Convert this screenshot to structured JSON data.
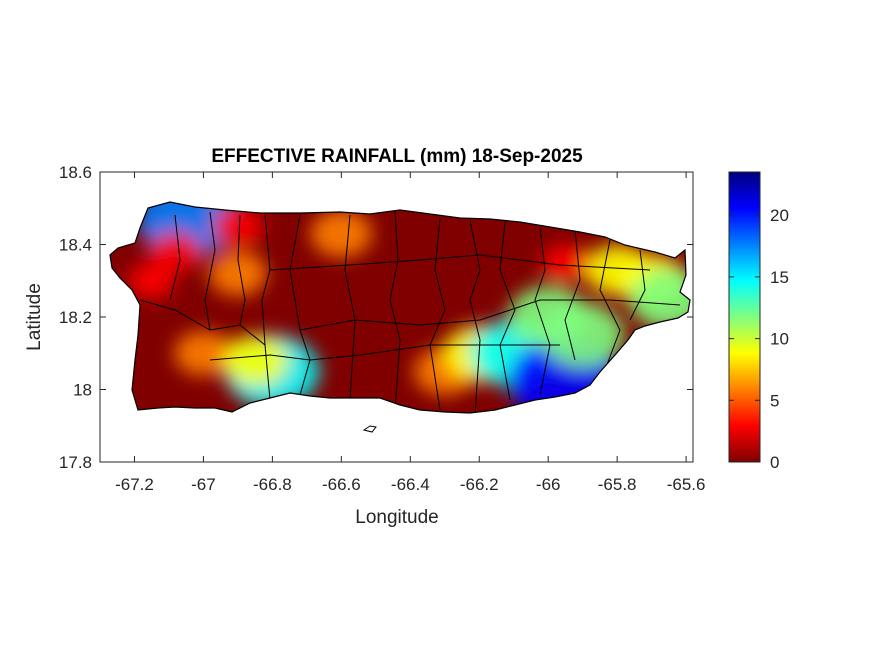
{
  "chart_data": {
    "type": "heatmap",
    "title": "EFFECTIVE RAINFALL (mm) 18-Sep-2025",
    "xlabel": "Longitude",
    "ylabel": "Latitude",
    "xlim": [
      -67.3,
      -65.58
    ],
    "ylim": [
      17.8,
      18.6
    ],
    "x_ticks": [
      -67.2,
      -67,
      -66.8,
      -66.6,
      -66.4,
      -66.2,
      -66,
      -65.8,
      -65.6
    ],
    "x_tick_labels": [
      "-67.2",
      "-67",
      "-66.8",
      "-66.6",
      "-66.4",
      "-66.2",
      "-66",
      "-65.8",
      "-65.6"
    ],
    "y_ticks": [
      17.8,
      18,
      18.2,
      18.4,
      18.6
    ],
    "y_tick_labels": [
      "17.8",
      "18",
      "18.2",
      "18.4",
      "18.6"
    ],
    "colorbar": {
      "min": 0,
      "max": 23.5,
      "ticks": [
        0,
        5,
        10,
        15,
        20
      ],
      "tick_labels": [
        "0",
        "5",
        "10",
        "15",
        "20"
      ],
      "colormap": "jet",
      "colors": [
        "#800000",
        "#ff0000",
        "#ff8000",
        "#ffff00",
        "#80ff80",
        "#00ffff",
        "#0080ff",
        "#0000ff",
        "#000080"
      ]
    },
    "rain_areas": [
      {
        "lon": -67.05,
        "lat": 18.47,
        "value": 17
      },
      {
        "lon": -67.08,
        "lat": 18.38,
        "value": 4
      },
      {
        "lon": -67.15,
        "lat": 18.3,
        "value": 3
      },
      {
        "lon": -66.9,
        "lat": 18.45,
        "value": 4
      },
      {
        "lon": -66.9,
        "lat": 18.32,
        "value": 6
      },
      {
        "lon": -66.6,
        "lat": 18.43,
        "value": 7
      },
      {
        "lon": -67.0,
        "lat": 18.1,
        "value": 6
      },
      {
        "lon": -66.8,
        "lat": 18.05,
        "value": 16
      },
      {
        "lon": -66.85,
        "lat": 18.08,
        "value": 8
      },
      {
        "lon": -66.3,
        "lat": 18.05,
        "value": 7
      },
      {
        "lon": -66.2,
        "lat": 18.1,
        "value": 10
      },
      {
        "lon": -66.1,
        "lat": 18.1,
        "value": 14
      },
      {
        "lon": -66.0,
        "lat": 18.2,
        "value": 12
      },
      {
        "lon": -65.95,
        "lat": 18.02,
        "value": 21
      },
      {
        "lon": -65.9,
        "lat": 18.15,
        "value": 13
      },
      {
        "lon": -65.95,
        "lat": 18.35,
        "value": 3
      },
      {
        "lon": -65.8,
        "lat": 18.33,
        "value": 8
      },
      {
        "lon": -65.7,
        "lat": 18.3,
        "value": 9
      },
      {
        "lon": -65.65,
        "lat": 18.25,
        "value": 12
      }
    ]
  }
}
